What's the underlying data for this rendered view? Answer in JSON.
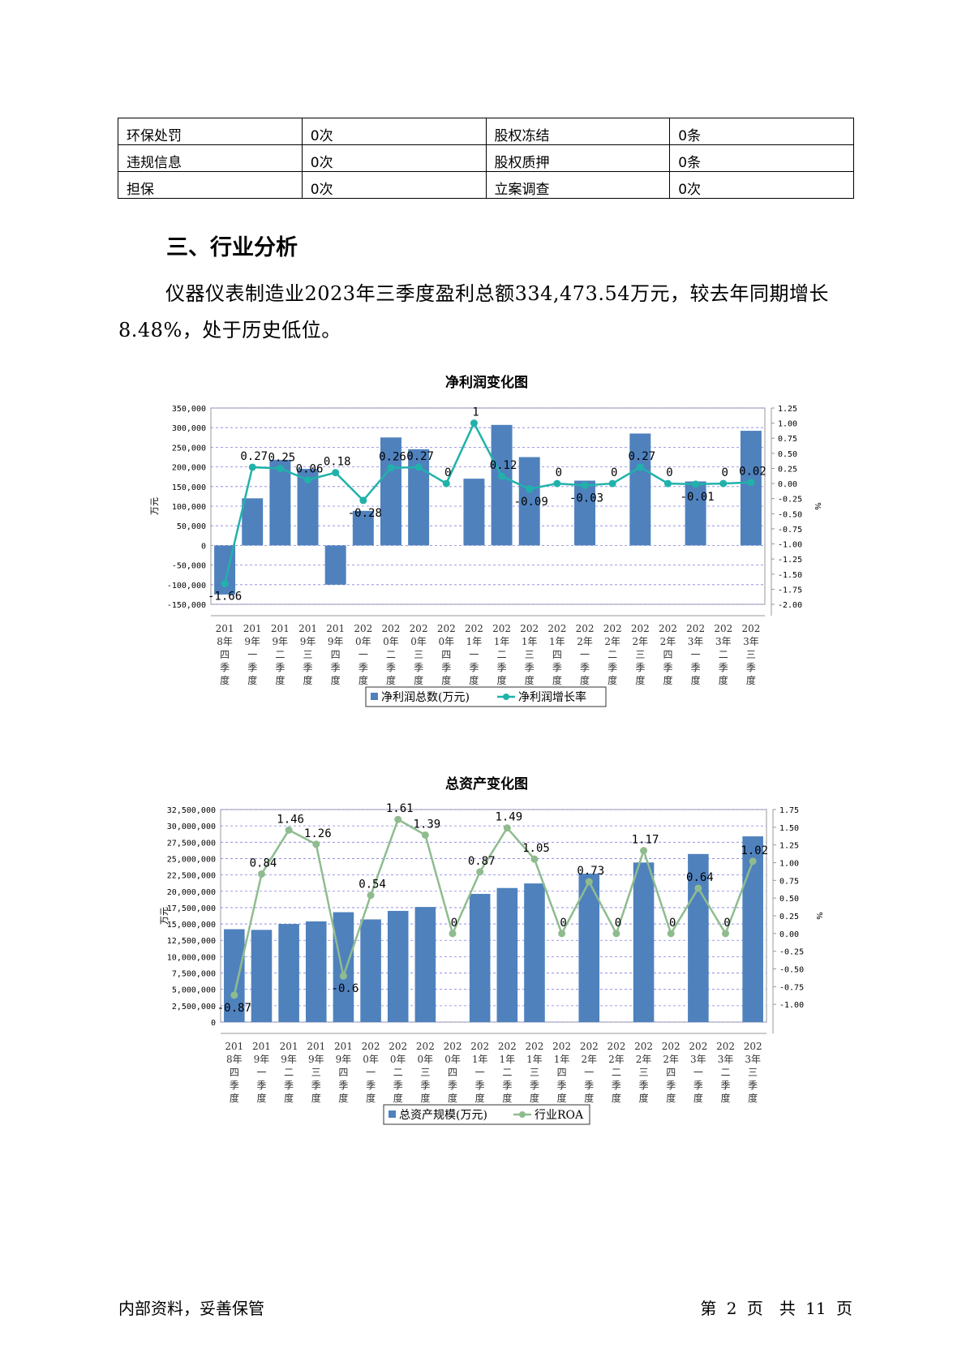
{
  "table": {
    "rows": [
      [
        "环保处罚",
        "0次",
        "股权冻结",
        "0条"
      ],
      [
        "违规信息",
        "0次",
        "股权质押",
        "0条"
      ],
      [
        "担保",
        "0次",
        "立案调查",
        "0次"
      ]
    ]
  },
  "section": {
    "heading": "三、行业分析",
    "paragraph": "仪器仪表制造业2023年三季度盈利总额334,473.54万元，较去年同期增长8.48%，处于历史低位。"
  },
  "chart_data": [
    {
      "type": "bar",
      "title": "净利润变化图",
      "ylabel": "万元",
      "y2label": "%",
      "ylim": [
        -150000,
        350000
      ],
      "y2lim": [
        -2.0,
        1.25
      ],
      "legend_position": "bottom",
      "grid": true,
      "categories": [
        [
          "201",
          "8年",
          "四",
          "季",
          "度"
        ],
        [
          "201",
          "9年",
          "一",
          "季",
          "度"
        ],
        [
          "201",
          "9年",
          "二",
          "季",
          "度"
        ],
        [
          "201",
          "9年",
          "三",
          "季",
          "度"
        ],
        [
          "201",
          "9年",
          "四",
          "季",
          "度"
        ],
        [
          "202",
          "0年",
          "一",
          "季",
          "度"
        ],
        [
          "202",
          "0年",
          "二",
          "季",
          "度"
        ],
        [
          "202",
          "0年",
          "三",
          "季",
          "度"
        ],
        [
          "202",
          "0年",
          "四",
          "季",
          "度"
        ],
        [
          "202",
          "1年",
          "一",
          "季",
          "度"
        ],
        [
          "202",
          "1年",
          "二",
          "季",
          "度"
        ],
        [
          "202",
          "1年",
          "三",
          "季",
          "度"
        ],
        [
          "202",
          "1年",
          "四",
          "季",
          "度"
        ],
        [
          "202",
          "2年",
          "一",
          "季",
          "度"
        ],
        [
          "202",
          "2年",
          "二",
          "季",
          "度"
        ],
        [
          "202",
          "2年",
          "三",
          "季",
          "度"
        ],
        [
          "202",
          "2年",
          "四",
          "季",
          "度"
        ],
        [
          "202",
          "3年",
          "一",
          "季",
          "度"
        ],
        [
          "202",
          "3年",
          "二",
          "季",
          "度"
        ],
        [
          "202",
          "3年",
          "三",
          "季",
          "度"
        ]
      ],
      "y_ticks": [
        "350,000",
        "300,000",
        "250,000",
        "200,000",
        "150,000",
        "100,000",
        "50,000",
        "0",
        "-50,000",
        "-100,000",
        "-150,000"
      ],
      "y2_ticks": [
        "1.25",
        "1.00",
        "0.75",
        "0.50",
        "0.25",
        "0.00",
        "-0.25",
        "-0.50",
        "-0.75",
        "-1.00",
        "-1.25",
        "-1.50",
        "-1.75",
        "-2.00"
      ],
      "series": [
        {
          "name": "净利润总数(万元)",
          "type": "bar",
          "color": "#4f81bd",
          "values": [
            -125000,
            120000,
            218000,
            195000,
            -100000,
            88000,
            275000,
            245000,
            0,
            170000,
            307000,
            225000,
            0,
            165000,
            0,
            285000,
            0,
            163000,
            0,
            292000
          ]
        },
        {
          "name": "净利润增长率",
          "type": "line",
          "color": "#20b2aa",
          "values": [
            -1.66,
            0.27,
            0.25,
            0.06,
            0.18,
            -0.28,
            0.26,
            0.27,
            0,
            1,
            0.12,
            -0.09,
            0,
            -0.03,
            0,
            0.27,
            0,
            -0.01,
            0,
            0.02
          ],
          "labels": [
            "-1.66",
            "0.27",
            "0.25",
            "0.06",
            "0.18",
            "-0.28",
            "0.26",
            "0.27",
            "0",
            "1",
            "0.12",
            "-0.09",
            "0",
            "-0.03",
            "0",
            "0.27",
            "0",
            "-0.01",
            "0",
            "0.02"
          ]
        }
      ]
    },
    {
      "type": "bar",
      "title": "总资产变化图",
      "ylabel": "万元",
      "y2label": "%",
      "ylim": [
        0,
        32500000
      ],
      "y2lim": [
        -1.25,
        1.75
      ],
      "legend_position": "bottom",
      "grid": true,
      "categories": [
        [
          "201",
          "8年",
          "四",
          "季",
          "度"
        ],
        [
          "201",
          "9年",
          "一",
          "季",
          "度"
        ],
        [
          "201",
          "9年",
          "二",
          "季",
          "度"
        ],
        [
          "201",
          "9年",
          "三",
          "季",
          "度"
        ],
        [
          "201",
          "9年",
          "四",
          "季",
          "度"
        ],
        [
          "202",
          "0年",
          "一",
          "季",
          "度"
        ],
        [
          "202",
          "0年",
          "二",
          "季",
          "度"
        ],
        [
          "202",
          "0年",
          "三",
          "季",
          "度"
        ],
        [
          "202",
          "0年",
          "四",
          "季",
          "度"
        ],
        [
          "202",
          "1年",
          "一",
          "季",
          "度"
        ],
        [
          "202",
          "1年",
          "二",
          "季",
          "度"
        ],
        [
          "202",
          "1年",
          "三",
          "季",
          "度"
        ],
        [
          "202",
          "1年",
          "四",
          "季",
          "度"
        ],
        [
          "202",
          "2年",
          "一",
          "季",
          "度"
        ],
        [
          "202",
          "2年",
          "二",
          "季",
          "度"
        ],
        [
          "202",
          "2年",
          "三",
          "季",
          "度"
        ],
        [
          "202",
          "2年",
          "四",
          "季",
          "度"
        ],
        [
          "202",
          "3年",
          "一",
          "季",
          "度"
        ],
        [
          "202",
          "3年",
          "二",
          "季",
          "度"
        ],
        [
          "202",
          "3年",
          "三",
          "季",
          "度"
        ]
      ],
      "y_ticks": [
        "32,500,000",
        "30,000,000",
        "27,500,000",
        "25,000,000",
        "22,500,000",
        "20,000,000",
        "17,500,000",
        "15,000,000",
        "12,500,000",
        "10,000,000",
        "7,500,000",
        "5,000,000",
        "2,500,000",
        "0"
      ],
      "y2_ticks": [
        "1.75",
        "1.50",
        "1.25",
        "1.00",
        "0.75",
        "0.50",
        "0.25",
        "0.00",
        "-0.25",
        "-0.50",
        "-0.75",
        "-1.00"
      ],
      "series": [
        {
          "name": "总资产规模(万元)",
          "type": "bar",
          "color": "#4f81bd",
          "values": [
            14200000,
            14100000,
            15000000,
            15400000,
            16800000,
            15700000,
            17000000,
            17600000,
            0,
            19600000,
            20500000,
            21200000,
            0,
            22700000,
            0,
            24400000,
            0,
            25700000,
            0,
            28400000
          ]
        },
        {
          "name": "行业ROA",
          "type": "line",
          "color": "#8fbc8f",
          "values": [
            -0.87,
            0.84,
            1.46,
            1.26,
            -0.6,
            0.54,
            1.61,
            1.39,
            0,
            0.87,
            1.49,
            1.05,
            0,
            0.73,
            0,
            1.17,
            0,
            0.64,
            0,
            1.02
          ],
          "labels": [
            "-0.87",
            "0.84",
            "1.46",
            "1.26",
            "-0.6",
            "0.54",
            "1.61",
            "1.39",
            "0",
            "0.87",
            "1.49",
            "1.05",
            "0",
            "0.73",
            "0",
            "1.17",
            "0",
            "0.64",
            "0",
            "1.02"
          ]
        }
      ]
    }
  ],
  "footer": {
    "left": "内部资料，妥善保管",
    "right": "第 2 页　共 11 页"
  }
}
